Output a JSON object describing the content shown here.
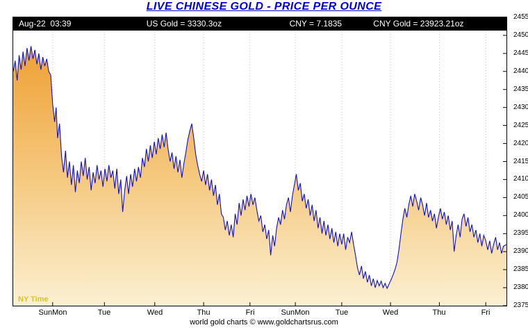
{
  "title": "LIVE CHINESE GOLD - PRICE PER OUNCE",
  "header": {
    "timestamp": "Aug-22  03:39",
    "us_gold": "US Gold = 3330.3oz",
    "cny_rate": "CNY = 7.1835",
    "cny_gold": "CNY Gold = 23923.21oz"
  },
  "ny_time_label": "NY Time",
  "footer": "world gold charts © www.goldchartsrus.com",
  "colors": {
    "title": "#0000dd",
    "strip_bg": "#000000",
    "strip_text": "#ffffff",
    "line": "#1010cc",
    "area_top": "#efa034",
    "area_mid": "#f5c87e",
    "area_bottom": "#fbf0d2",
    "grid": "#c0c0c0",
    "ny_time": "#d9c229",
    "axis_text": "#000000"
  },
  "chart_data": {
    "type": "area",
    "title": "LIVE CHINESE GOLD - PRICE PER OUNCE",
    "y_min": 23750,
    "y_max": 24550,
    "y_step": 50,
    "legend": "none",
    "grid": "vertical-dotted",
    "x_tick_labels": [
      {
        "label": "SunMon",
        "pos": 0.08
      },
      {
        "label": "Tue",
        "pos": 0.185
      },
      {
        "label": "Wed",
        "pos": 0.287
      },
      {
        "label": "Thu",
        "pos": 0.386
      },
      {
        "label": "Fri",
        "pos": 0.48
      },
      {
        "label": "SunMon",
        "pos": 0.572
      },
      {
        "label": "Tue",
        "pos": 0.666
      },
      {
        "label": "Wed",
        "pos": 0.765
      },
      {
        "label": "Thu",
        "pos": 0.864
      },
      {
        "label": "Fri",
        "pos": 0.958
      }
    ],
    "points": [
      [
        0.0,
        24400
      ],
      [
        0.004,
        24430
      ],
      [
        0.008,
        24375
      ],
      [
        0.012,
        24445
      ],
      [
        0.016,
        24405
      ],
      [
        0.02,
        24455
      ],
      [
        0.024,
        24415
      ],
      [
        0.028,
        24465
      ],
      [
        0.032,
        24430
      ],
      [
        0.036,
        24470
      ],
      [
        0.04,
        24435
      ],
      [
        0.044,
        24460
      ],
      [
        0.048,
        24420
      ],
      [
        0.052,
        24450
      ],
      [
        0.056,
        24405
      ],
      [
        0.06,
        24440
      ],
      [
        0.064,
        24415
      ],
      [
        0.068,
        24435
      ],
      [
        0.072,
        24400
      ],
      [
        0.076,
        24390
      ],
      [
        0.08,
        24310
      ],
      [
        0.084,
        24260
      ],
      [
        0.087,
        24300
      ],
      [
        0.09,
        24215
      ],
      [
        0.094,
        24255
      ],
      [
        0.098,
        24165
      ],
      [
        0.102,
        24120
      ],
      [
        0.106,
        24180
      ],
      [
        0.11,
        24105
      ],
      [
        0.114,
        24150
      ],
      [
        0.118,
        24085
      ],
      [
        0.122,
        24140
      ],
      [
        0.126,
        24065
      ],
      [
        0.13,
        24125
      ],
      [
        0.134,
        24090
      ],
      [
        0.138,
        24150
      ],
      [
        0.142,
        24110
      ],
      [
        0.146,
        24160
      ],
      [
        0.15,
        24100
      ],
      [
        0.154,
        24135
      ],
      [
        0.158,
        24070
      ],
      [
        0.162,
        24120
      ],
      [
        0.166,
        24090
      ],
      [
        0.17,
        24140
      ],
      [
        0.174,
        24100
      ],
      [
        0.178,
        24125
      ],
      [
        0.182,
        24080
      ],
      [
        0.186,
        24130
      ],
      [
        0.19,
        24095
      ],
      [
        0.194,
        24140
      ],
      [
        0.198,
        24105
      ],
      [
        0.202,
        24125
      ],
      [
        0.206,
        24075
      ],
      [
        0.21,
        24130
      ],
      [
        0.214,
        24060
      ],
      [
        0.218,
        24100
      ],
      [
        0.222,
        24010
      ],
      [
        0.226,
        24070
      ],
      [
        0.23,
        24110
      ],
      [
        0.234,
        24060
      ],
      [
        0.238,
        24115
      ],
      [
        0.242,
        24080
      ],
      [
        0.246,
        24130
      ],
      [
        0.25,
        24095
      ],
      [
        0.254,
        24135
      ],
      [
        0.258,
        24105
      ],
      [
        0.262,
        24160
      ],
      [
        0.266,
        24135
      ],
      [
        0.27,
        24185
      ],
      [
        0.274,
        24150
      ],
      [
        0.278,
        24195
      ],
      [
        0.282,
        24160
      ],
      [
        0.286,
        24205
      ],
      [
        0.29,
        24170
      ],
      [
        0.294,
        24215
      ],
      [
        0.298,
        24185
      ],
      [
        0.302,
        24225
      ],
      [
        0.306,
        24190
      ],
      [
        0.31,
        24230
      ],
      [
        0.314,
        24185
      ],
      [
        0.318,
        24150
      ],
      [
        0.322,
        24175
      ],
      [
        0.326,
        24130
      ],
      [
        0.33,
        24165
      ],
      [
        0.334,
        24120
      ],
      [
        0.338,
        24155
      ],
      [
        0.342,
        24105
      ],
      [
        0.346,
        24145
      ],
      [
        0.35,
        24175
      ],
      [
        0.354,
        24210
      ],
      [
        0.358,
        24235
      ],
      [
        0.362,
        24255
      ],
      [
        0.366,
        24215
      ],
      [
        0.37,
        24170
      ],
      [
        0.374,
        24140
      ],
      [
        0.378,
        24115
      ],
      [
        0.382,
        24095
      ],
      [
        0.386,
        24125
      ],
      [
        0.39,
        24085
      ],
      [
        0.394,
        24115
      ],
      [
        0.398,
        24070
      ],
      [
        0.402,
        24100
      ],
      [
        0.406,
        24055
      ],
      [
        0.41,
        24085
      ],
      [
        0.414,
        24030
      ],
      [
        0.418,
        24060
      ],
      [
        0.422,
        24005
      ],
      [
        0.426,
        23995
      ],
      [
        0.43,
        23960
      ],
      [
        0.434,
        23985
      ],
      [
        0.438,
        23945
      ],
      [
        0.442,
        23975
      ],
      [
        0.446,
        23940
      ],
      [
        0.45,
        24005
      ],
      [
        0.454,
        23975
      ],
      [
        0.458,
        24035
      ],
      [
        0.462,
        24000
      ],
      [
        0.466,
        24045
      ],
      [
        0.47,
        24015
      ],
      [
        0.474,
        24055
      ],
      [
        0.478,
        24025
      ],
      [
        0.482,
        24060
      ],
      [
        0.486,
        24030
      ],
      [
        0.49,
        24050
      ],
      [
        0.494,
        24015
      ],
      [
        0.498,
        23985
      ],
      [
        0.502,
        24000
      ],
      [
        0.506,
        23955
      ],
      [
        0.51,
        23975
      ],
      [
        0.514,
        23935
      ],
      [
        0.518,
        23960
      ],
      [
        0.522,
        23890
      ],
      [
        0.526,
        23945
      ],
      [
        0.53,
        23915
      ],
      [
        0.534,
        23965
      ],
      [
        0.538,
        23995
      ],
      [
        0.542,
        23975
      ],
      [
        0.546,
        24015
      ],
      [
        0.55,
        23990
      ],
      [
        0.554,
        24030
      ],
      [
        0.558,
        24050
      ],
      [
        0.562,
        24010
      ],
      [
        0.566,
        24055
      ],
      [
        0.57,
        24085
      ],
      [
        0.574,
        24115
      ],
      [
        0.578,
        24070
      ],
      [
        0.582,
        24090
      ],
      [
        0.586,
        24040
      ],
      [
        0.59,
        24060
      ],
      [
        0.594,
        24020
      ],
      [
        0.598,
        24045
      ],
      [
        0.602,
        24000
      ],
      [
        0.606,
        24030
      ],
      [
        0.61,
        23985
      ],
      [
        0.614,
        24015
      ],
      [
        0.618,
        23965
      ],
      [
        0.622,
        23995
      ],
      [
        0.626,
        23950
      ],
      [
        0.63,
        23985
      ],
      [
        0.634,
        23945
      ],
      [
        0.638,
        23975
      ],
      [
        0.642,
        23935
      ],
      [
        0.646,
        23965
      ],
      [
        0.65,
        23925
      ],
      [
        0.654,
        23955
      ],
      [
        0.658,
        23915
      ],
      [
        0.662,
        23950
      ],
      [
        0.666,
        23920
      ],
      [
        0.67,
        23950
      ],
      [
        0.674,
        23905
      ],
      [
        0.678,
        23940
      ],
      [
        0.682,
        23925
      ],
      [
        0.686,
        23955
      ],
      [
        0.69,
        23920
      ],
      [
        0.694,
        23890
      ],
      [
        0.698,
        23855
      ],
      [
        0.702,
        23835
      ],
      [
        0.706,
        23860
      ],
      [
        0.71,
        23825
      ],
      [
        0.714,
        23845
      ],
      [
        0.718,
        23815
      ],
      [
        0.722,
        23835
      ],
      [
        0.726,
        23805
      ],
      [
        0.73,
        23825
      ],
      [
        0.734,
        23800
      ],
      [
        0.738,
        23820
      ],
      [
        0.742,
        23805
      ],
      [
        0.746,
        23818
      ],
      [
        0.75,
        23800
      ],
      [
        0.754,
        23812
      ],
      [
        0.758,
        23798
      ],
      [
        0.762,
        23810
      ],
      [
        0.766,
        23822
      ],
      [
        0.77,
        23835
      ],
      [
        0.774,
        23850
      ],
      [
        0.778,
        23870
      ],
      [
        0.782,
        23905
      ],
      [
        0.786,
        23950
      ],
      [
        0.79,
        23990
      ],
      [
        0.794,
        24020
      ],
      [
        0.798,
        23995
      ],
      [
        0.802,
        24030
      ],
      [
        0.806,
        24055
      ],
      [
        0.81,
        24025
      ],
      [
        0.814,
        24060
      ],
      [
        0.818,
        24040
      ],
      [
        0.822,
        24015
      ],
      [
        0.826,
        24050
      ],
      [
        0.83,
        24030
      ],
      [
        0.834,
        24000
      ],
      [
        0.838,
        24035
      ],
      [
        0.842,
        23995
      ],
      [
        0.846,
        24015
      ],
      [
        0.85,
        23985
      ],
      [
        0.854,
        24005
      ],
      [
        0.858,
        23965
      ],
      [
        0.862,
        23995
      ],
      [
        0.866,
        24020
      ],
      [
        0.87,
        23990
      ],
      [
        0.874,
        24010
      ],
      [
        0.878,
        23975
      ],
      [
        0.882,
        24000
      ],
      [
        0.886,
        23960
      ],
      [
        0.89,
        23985
      ],
      [
        0.894,
        23900
      ],
      [
        0.898,
        23945
      ],
      [
        0.902,
        23975
      ],
      [
        0.906,
        23940
      ],
      [
        0.91,
        23990
      ],
      [
        0.914,
        24005
      ],
      [
        0.918,
        23970
      ],
      [
        0.922,
        23995
      ],
      [
        0.926,
        23955
      ],
      [
        0.93,
        23975
      ],
      [
        0.934,
        23940
      ],
      [
        0.938,
        23960
      ],
      [
        0.942,
        23925
      ],
      [
        0.946,
        23950
      ],
      [
        0.95,
        23915
      ],
      [
        0.954,
        23945
      ],
      [
        0.958,
        23930
      ],
      [
        0.962,
        23905
      ],
      [
        0.966,
        23930
      ],
      [
        0.97,
        23895
      ],
      [
        0.974,
        23920
      ],
      [
        0.978,
        23940
      ],
      [
        0.982,
        23905
      ],
      [
        0.986,
        23925
      ],
      [
        0.99,
        23895
      ],
      [
        0.994,
        23915
      ],
      [
        1.0,
        23920
      ]
    ]
  }
}
